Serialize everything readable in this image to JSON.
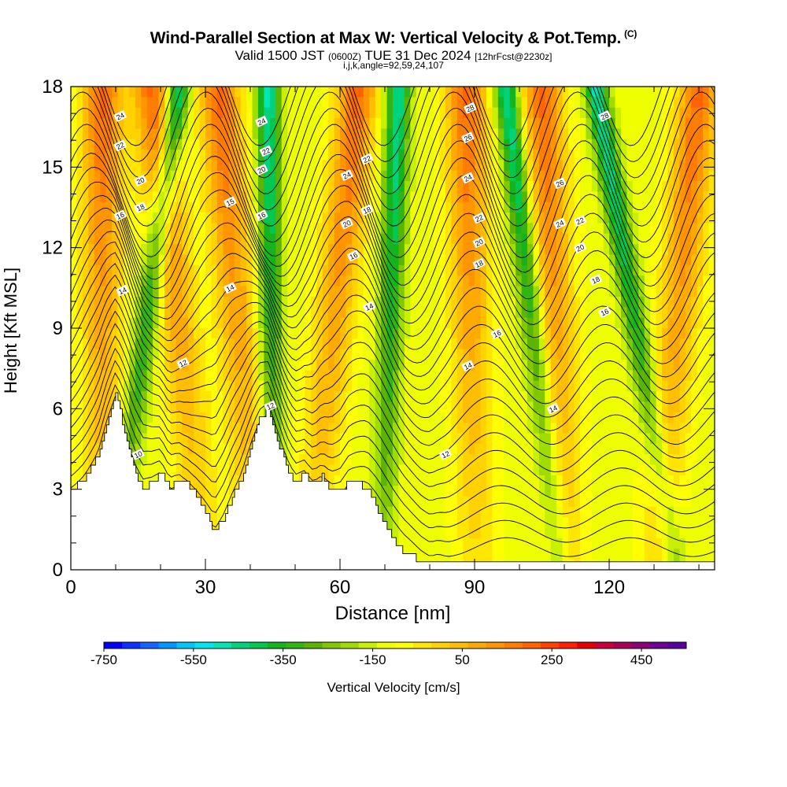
{
  "header": {
    "title": "Wind-Parallel Section at Max W: Vertical Velocity & Pot.Temp.",
    "title_tag": "(C)",
    "valid_prefix": "Valid 1500 JST",
    "valid_utc": "(0600Z)",
    "valid_date": "TUE 31 Dec 2024",
    "forecast": "[12hrFcst@2230z]",
    "params": "i,j,k,angle=92,59,24,107"
  },
  "chart_data": {
    "type": "heatmap",
    "xlabel": "Distance [nm]",
    "ylabel": "Height [Kft MSL]",
    "xlim": [
      0,
      143.5
    ],
    "ylim": [
      0,
      18
    ],
    "x_ticks": [
      "0",
      "30",
      "60",
      "90",
      "120"
    ],
    "y_ticks": [
      "0",
      "3",
      "6",
      "9",
      "12",
      "15",
      "18"
    ],
    "terrain_profile": {
      "x": [
        0,
        3,
        6,
        8,
        10,
        12,
        14,
        16,
        18,
        20,
        22,
        24,
        26,
        28,
        30,
        32,
        34,
        36,
        38,
        40,
        42,
        44,
        46,
        48,
        50,
        52,
        54,
        56,
        58,
        60,
        62,
        64,
        66,
        68,
        70,
        72,
        74,
        76,
        78,
        80,
        82,
        84,
        86,
        88,
        90,
        100,
        110,
        120,
        130,
        143.5
      ],
      "height_kft": [
        2.9,
        3.4,
        4.2,
        5.5,
        6.5,
        5.2,
        3.8,
        3.0,
        3.2,
        3.6,
        3.0,
        3.4,
        3.2,
        2.8,
        2.2,
        1.4,
        1.9,
        2.7,
        3.4,
        4.6,
        5.6,
        6.0,
        4.9,
        3.8,
        3.2,
        3.6,
        3.2,
        3.5,
        3.0,
        2.9,
        3.3,
        3.2,
        3.0,
        2.4,
        1.7,
        1.1,
        0.7,
        0.5,
        0.3,
        0.2,
        0.4,
        0.3,
        0.3,
        0.3,
        0.3,
        0.3,
        0.3,
        0.3,
        0.3,
        0.3
      ]
    },
    "vertical_velocity_bands": {
      "updraft_ridges_x_at_3kft": [
        7,
        28,
        40,
        55,
        90,
        110,
        132
      ],
      "updraft_ridges_x_at_18kft": [
        18,
        33,
        64,
        88,
        105,
        140
      ],
      "downdraft_ridges_x_at_3kft": [
        12,
        45,
        70,
        107
      ],
      "downdraft_ridges_x_at_18kft": [
        24,
        44,
        73,
        97,
        117
      ],
      "max_updraft_cm_s": 300,
      "max_downdraft_cm_s": -350
    },
    "theta_contour_labels": [
      {
        "text": "24",
        "x": 11,
        "y": 16.9
      },
      {
        "text": "22",
        "x": 11,
        "y": 15.8
      },
      {
        "text": "20",
        "x": 15.5,
        "y": 14.5
      },
      {
        "text": "18",
        "x": 15.5,
        "y": 13.5
      },
      {
        "text": "16",
        "x": 11,
        "y": 13.2
      },
      {
        "text": "14",
        "x": 11.5,
        "y": 10.4
      },
      {
        "text": "10",
        "x": 15,
        "y": 4.3
      },
      {
        "text": "12",
        "x": 25,
        "y": 7.7
      },
      {
        "text": "14",
        "x": 35.5,
        "y": 10.5
      },
      {
        "text": "15",
        "x": 35.5,
        "y": 13.7
      },
      {
        "text": "16",
        "x": 42.5,
        "y": 13.2
      },
      {
        "text": "20",
        "x": 42.5,
        "y": 14.9
      },
      {
        "text": "22",
        "x": 43.5,
        "y": 15.6
      },
      {
        "text": "24",
        "x": 42.5,
        "y": 16.7
      },
      {
        "text": "12",
        "x": 44.5,
        "y": 6.1
      },
      {
        "text": "24",
        "x": 61.5,
        "y": 14.7
      },
      {
        "text": "22",
        "x": 66,
        "y": 15.3
      },
      {
        "text": "20",
        "x": 61.5,
        "y": 12.9
      },
      {
        "text": "18",
        "x": 66,
        "y": 13.4
      },
      {
        "text": "16",
        "x": 63,
        "y": 11.7
      },
      {
        "text": "14",
        "x": 66.5,
        "y": 9.8
      },
      {
        "text": "12",
        "x": 83.5,
        "y": 4.3
      },
      {
        "text": "14",
        "x": 88.5,
        "y": 7.6
      },
      {
        "text": "16",
        "x": 95,
        "y": 8.8
      },
      {
        "text": "18",
        "x": 91,
        "y": 11.4
      },
      {
        "text": "20",
        "x": 91,
        "y": 12.2
      },
      {
        "text": "22",
        "x": 91,
        "y": 13.1
      },
      {
        "text": "24",
        "x": 88.5,
        "y": 14.6
      },
      {
        "text": "26",
        "x": 88.5,
        "y": 16.1
      },
      {
        "text": "28",
        "x": 89,
        "y": 17.2
      },
      {
        "text": "14",
        "x": 107.5,
        "y": 6.0
      },
      {
        "text": "24",
        "x": 109,
        "y": 12.9
      },
      {
        "text": "26",
        "x": 109,
        "y": 14.4
      },
      {
        "text": "22",
        "x": 113.5,
        "y": 13.0
      },
      {
        "text": "20",
        "x": 113.5,
        "y": 12.0
      },
      {
        "text": "18",
        "x": 117,
        "y": 10.8
      },
      {
        "text": "16",
        "x": 119,
        "y": 9.6
      },
      {
        "text": "28",
        "x": 119,
        "y": 16.9
      }
    ],
    "colorbar": {
      "label": "Vertical Velocity [cm/s]",
      "tick_labels": [
        "-750",
        "-550",
        "-350",
        "-150",
        "50",
        "250",
        "450"
      ],
      "tick_values": [
        -750,
        -550,
        -350,
        -150,
        50,
        250,
        450
      ],
      "range": [
        -750,
        550
      ],
      "step": 50,
      "colors": [
        "#0000ff",
        "#0a32ff",
        "#1464ff",
        "#0096ff",
        "#00c8ff",
        "#00e6f0",
        "#00e6b4",
        "#00d27d",
        "#00c850",
        "#14b41e",
        "#32b414",
        "#5ab400",
        "#82c800",
        "#a0dc00",
        "#c8f000",
        "#f0ff00",
        "#ffff00",
        "#ffe600",
        "#ffd200",
        "#ffbe00",
        "#ffaa00",
        "#ff9600",
        "#ff7d00",
        "#ff6400",
        "#ff4100",
        "#ff2000",
        "#e60000",
        "#c8003c",
        "#aa005a",
        "#8c0078",
        "#6e0096",
        "#5a00a0"
      ]
    }
  }
}
